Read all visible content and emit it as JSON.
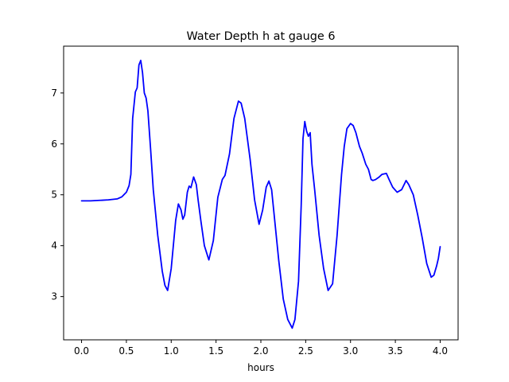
{
  "chart_data": {
    "type": "line",
    "title": "Water Depth h at gauge 6",
    "xlabel": "hours",
    "ylabel": "",
    "xlim": [
      -0.2,
      4.2
    ],
    "ylim": [
      2.15,
      7.92
    ],
    "xticks": [
      "0.0",
      "0.5",
      "1.0",
      "1.5",
      "2.0",
      "2.5",
      "3.0",
      "3.5",
      "4.0"
    ],
    "xtick_values": [
      0.0,
      0.5,
      1.0,
      1.5,
      2.0,
      2.5,
      3.0,
      3.5,
      4.0
    ],
    "yticks": [
      "3",
      "4",
      "5",
      "6",
      "7"
    ],
    "ytick_values": [
      3,
      4,
      5,
      6,
      7
    ],
    "grid": false,
    "series": [
      {
        "color": "#0000ff",
        "x": [
          0.0,
          0.1,
          0.2,
          0.3,
          0.4,
          0.45,
          0.5,
          0.53,
          0.55,
          0.57,
          0.6,
          0.62,
          0.64,
          0.66,
          0.68,
          0.7,
          0.72,
          0.74,
          0.77,
          0.8,
          0.85,
          0.9,
          0.93,
          0.96,
          1.0,
          1.05,
          1.08,
          1.11,
          1.13,
          1.15,
          1.18,
          1.2,
          1.22,
          1.25,
          1.28,
          1.3,
          1.33,
          1.37,
          1.42,
          1.47,
          1.52,
          1.57,
          1.6,
          1.65,
          1.7,
          1.75,
          1.78,
          1.82,
          1.88,
          1.93,
          1.98,
          2.02,
          2.06,
          2.09,
          2.12,
          2.16,
          2.2,
          2.25,
          2.3,
          2.35,
          2.38,
          2.42,
          2.45,
          2.47,
          2.49,
          2.51,
          2.53,
          2.55,
          2.57,
          2.6,
          2.65,
          2.7,
          2.75,
          2.8,
          2.85,
          2.9,
          2.93,
          2.96,
          3.0,
          3.03,
          3.06,
          3.1,
          3.13,
          3.17,
          3.2,
          3.23,
          3.25,
          3.28,
          3.32,
          3.35,
          3.4,
          3.43,
          3.47,
          3.52,
          3.57,
          3.62,
          3.65,
          3.7,
          3.75,
          3.8,
          3.85,
          3.9,
          3.93,
          3.96,
          3.98,
          4.0
        ],
        "y": [
          4.88,
          4.88,
          4.89,
          4.9,
          4.92,
          4.96,
          5.05,
          5.18,
          5.4,
          6.5,
          7.02,
          7.1,
          7.55,
          7.64,
          7.4,
          7.0,
          6.9,
          6.65,
          5.9,
          5.1,
          4.2,
          3.5,
          3.22,
          3.12,
          3.55,
          4.5,
          4.82,
          4.7,
          4.52,
          4.6,
          5.05,
          5.17,
          5.14,
          5.35,
          5.2,
          4.9,
          4.5,
          4.0,
          3.72,
          4.1,
          4.95,
          5.3,
          5.38,
          5.8,
          6.5,
          6.84,
          6.8,
          6.5,
          5.7,
          4.9,
          4.42,
          4.7,
          5.15,
          5.27,
          5.1,
          4.4,
          3.7,
          2.95,
          2.55,
          2.38,
          2.55,
          3.3,
          4.8,
          6.1,
          6.44,
          6.25,
          6.15,
          6.22,
          5.6,
          5.1,
          4.2,
          3.55,
          3.12,
          3.25,
          4.2,
          5.4,
          5.95,
          6.3,
          6.4,
          6.36,
          6.22,
          5.95,
          5.82,
          5.6,
          5.5,
          5.3,
          5.28,
          5.3,
          5.35,
          5.4,
          5.42,
          5.3,
          5.15,
          5.05,
          5.1,
          5.28,
          5.2,
          5.0,
          4.6,
          4.15,
          3.65,
          3.38,
          3.42,
          3.6,
          3.75,
          3.98
        ]
      }
    ]
  }
}
